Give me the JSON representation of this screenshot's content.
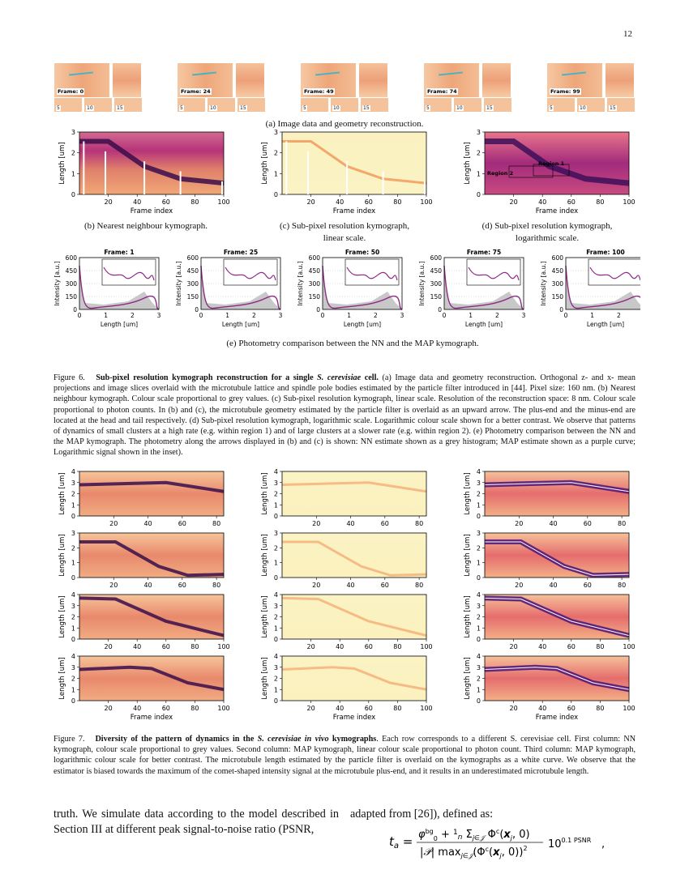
{
  "page_number": "12",
  "fig6": {
    "thumbs": [
      "Frame: 0",
      "Frame: 24",
      "Frame: 49",
      "Frame: 74",
      "Frame: 99"
    ],
    "small_labels": [
      "5",
      "10",
      "15"
    ],
    "sub_a": "(a) Image data and geometry reconstruction.",
    "kymo_ylabel": "Length [um]",
    "kymo_xlabel": "Frame index",
    "kymo_yticks": [
      "0",
      "1",
      "2",
      "3"
    ],
    "kymo_xticks": [
      "20",
      "40",
      "60",
      "80",
      "100"
    ],
    "sub_b": "(b) Nearest neighbour kymograph.",
    "sub_c1": "(c) Sub-pixel resolution kymograph,",
    "sub_c2": "linear scale.",
    "sub_d1": "(d) Sub-pixel resolution kymograph,",
    "sub_d2": "logarithmic scale.",
    "region1": "Region 1",
    "region2": "Region 2",
    "photo_titles": [
      "Frame: 1",
      "Frame: 25",
      "Frame: 50",
      "Frame: 75",
      "Frame: 100"
    ],
    "photo_ylabel": "Intensity [a.u.]",
    "photo_xlabel": "Length [um]",
    "photo_yticks": [
      "0",
      "150",
      "300",
      "450",
      "600"
    ],
    "photo_xticks": [
      "0",
      "1",
      "2",
      "3"
    ],
    "sub_e": "(e) Photometry comparison between the NN and the MAP kymograph.",
    "caption_label": "Figure 6.",
    "caption_title": "Sub-pixel resolution kymograph reconstruction for a single",
    "caption_species": "S. cerevisiae",
    "caption_title_end": "cell.",
    "caption_body": "(a) Image data and geometry reconstruction. Orthogonal z- and x- mean projections and image slices overlaid with the microtubule lattice and spindle pole bodies estimated by the particle filter introduced in [44]. Pixel size: 160 nm. (b) Nearest neighbour kymograph. Colour scale proportional to grey values. (c) Sub-pixel resolution kymograph, linear scale. Resolution of the reconstruction space: 8 nm. Colour scale proportional to photon counts. In (b) and (c), the microtubule geometry estimated by the particle filter is overlaid as an upward arrow. The plus-end and the minus-end are located at the head and tail respectively. (d) Sub-pixel resolution kymograph, logarithmic scale. Logarithmic colour scale shown for a better contrast. We observe that patterns of dynamics of small clusters at a high rate (e.g. within region 1) and of large clusters at a slower rate (e.g. within region 2). (e) Photometry comparison between the NN and the MAP kymograph. The photometry along the arrows displayed in (b) and (c) is shown: NN estimate shown as a grey histogram; MAP estimate shown as a purple curve; Logarithmic signal shown in the inset)."
  },
  "fig7": {
    "ylabel": "Length [um]",
    "xlabel": "Frame index",
    "rows": [
      {
        "yticks": [
          "0",
          "1",
          "2",
          "3",
          "4"
        ],
        "xticks": [
          "20",
          "40",
          "60",
          "80"
        ]
      },
      {
        "yticks": [
          "0",
          "1",
          "2",
          "3"
        ],
        "xticks": [
          "20",
          "40",
          "60",
          "80"
        ]
      },
      {
        "yticks": [
          "0",
          "1",
          "2",
          "3",
          "4"
        ],
        "xticks": [
          "20",
          "40",
          "60",
          "80",
          "100"
        ]
      },
      {
        "yticks": [
          "0",
          "1",
          "2",
          "3",
          "4"
        ],
        "xticks": [
          "20",
          "40",
          "60",
          "80",
          "100"
        ]
      }
    ],
    "caption_label": "Figure 7.",
    "caption_title": "Diversity of the pattern of dynamics in the",
    "caption_species": "S. cerevisiae in vivo",
    "caption_title_end": "kymographs",
    "caption_body": ". Each row corresponds to a different S. cerevisiae cell. First column: NN kymograph, colour scale proportional to grey values. Second column: MAP kymograph, linear colour scale proportional to photon count. Third column: MAP kymograph, logarithmic colour scale for better contrast. The microtubule length estimated by the particle filter is overlaid on the kymographs as a white curve. We observe that the estimator is biased towards the maximum of the comet-shaped intensity signal at the microtubule plus-end, and it results in an underestimated microtubule length."
  },
  "body": {
    "left": "truth. We simulate data according to the model described in Section III at different peak signal-to-noise ratio (PSNR,",
    "right": "adapted from [26]), defined as:",
    "formula_lhs": "t",
    "formula_tail": "10",
    "formula_exp": "0.1 PSNR",
    "formula_comma": ","
  },
  "colors": {
    "purple": "#8e2a86",
    "dark": "#2b0a3d",
    "light": "#fbf3c4",
    "grid": "#999999"
  }
}
